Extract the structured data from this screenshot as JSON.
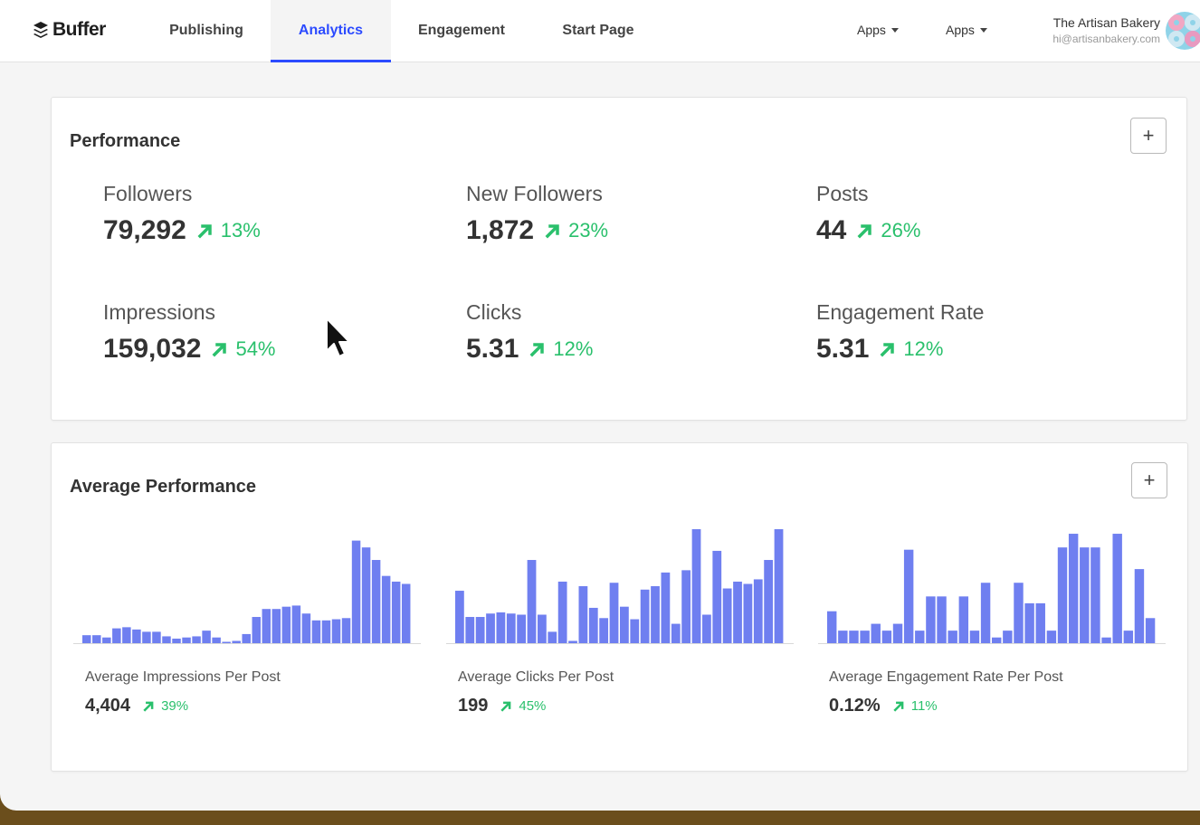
{
  "app": {
    "logo_text": "Buffer"
  },
  "nav": {
    "tabs": [
      {
        "label": "Publishing"
      },
      {
        "label": "Analytics"
      },
      {
        "label": "Engagement"
      },
      {
        "label": "Start Page"
      }
    ],
    "apps_menus": [
      {
        "label": "Apps"
      },
      {
        "label": "Apps"
      }
    ]
  },
  "account": {
    "name": "The Artisan Bakery",
    "email": "hi@artisanbakery.com"
  },
  "performance": {
    "title": "Performance",
    "add_label": "+",
    "metrics": [
      {
        "label": "Followers",
        "value": "79,292",
        "change": "13%"
      },
      {
        "label": "New Followers",
        "value": "1,872",
        "change": "23%"
      },
      {
        "label": "Posts",
        "value": "44",
        "change": "26%"
      },
      {
        "label": "Impressions",
        "value": "159,032",
        "change": "54%"
      },
      {
        "label": "Clicks",
        "value": "5.31",
        "change": "12%"
      },
      {
        "label": "Engagement Rate",
        "value": "5.31",
        "change": "12%"
      }
    ]
  },
  "average_performance": {
    "title": "Average Performance",
    "add_label": "+",
    "items": [
      {
        "label": "Average Impressions Per Post",
        "value": "4,404",
        "change": "39%"
      },
      {
        "label": "Average Clicks Per Post",
        "value": "199",
        "change": "45%"
      },
      {
        "label": "Average Engagement Rate Per Post",
        "value": "0.12%",
        "change": "11%"
      }
    ]
  },
  "colors": {
    "accent": "#2c4bff",
    "positive": "#2ac06c",
    "bar": "#6f7ff0"
  },
  "chart_data": [
    {
      "type": "bar",
      "ylim": [
        0,
        100
      ],
      "values": [
        7,
        7,
        5,
        13,
        14,
        12,
        10,
        10,
        6,
        4,
        5,
        6,
        11,
        5,
        1,
        2,
        8,
        23,
        30,
        30,
        32,
        33,
        26,
        20,
        20,
        21,
        22,
        90,
        84,
        73,
        59,
        54,
        52
      ]
    },
    {
      "type": "bar",
      "ylim": [
        0,
        100
      ],
      "values": [
        46,
        23,
        23,
        26,
        27,
        26,
        25,
        73,
        25,
        10,
        54,
        2,
        50,
        31,
        22,
        53,
        32,
        21,
        47,
        50,
        62,
        17,
        64,
        100,
        25,
        81,
        48,
        54,
        52,
        56,
        73,
        100
      ]
    },
    {
      "type": "bar",
      "ylim": [
        0,
        100
      ],
      "values": [
        28,
        11,
        11,
        11,
        17,
        11,
        17,
        82,
        11,
        41,
        41,
        11,
        41,
        11,
        53,
        5,
        11,
        53,
        35,
        35,
        11,
        84,
        96,
        84,
        84,
        5,
        96,
        11,
        65,
        22
      ]
    }
  ]
}
